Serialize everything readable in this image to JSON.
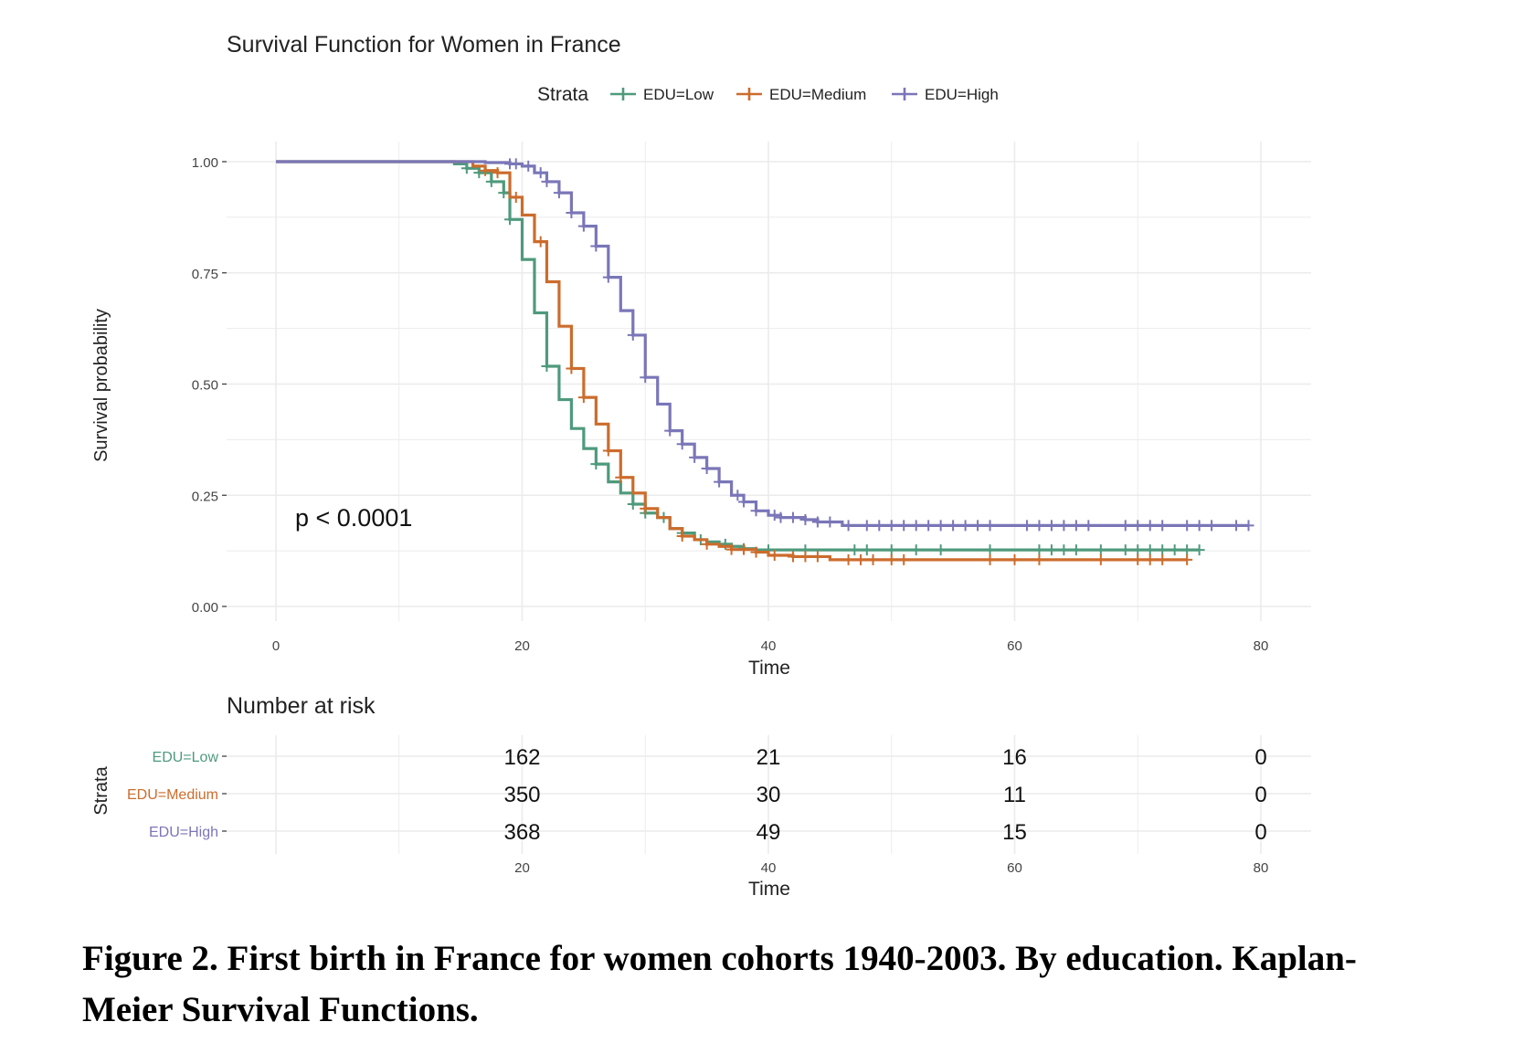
{
  "chart_data": {
    "type": "line",
    "title": "Survival Function for Women in France",
    "xlabel": "Time",
    "ylabel": "Survival probability",
    "xlim": [
      0,
      84
    ],
    "ylim": [
      0,
      1
    ],
    "x_ticks": [
      "0",
      "20",
      "40",
      "60",
      "80"
    ],
    "y_ticks": [
      "0.00",
      "0.25",
      "0.50",
      "0.75",
      "1.00"
    ],
    "grid": true,
    "legend": {
      "title": "Strata",
      "position": "top"
    },
    "annotation": "p < 0.0001",
    "series": [
      {
        "name": "EDU=Low",
        "color": "#4e9a7c",
        "steps": [
          [
            0,
            1.0
          ],
          [
            14.5,
            0.995
          ],
          [
            15.5,
            0.985
          ],
          [
            16.5,
            0.975
          ],
          [
            17.5,
            0.955
          ],
          [
            18.5,
            0.93
          ],
          [
            19,
            0.87
          ],
          [
            20,
            0.78
          ],
          [
            21,
            0.66
          ],
          [
            22,
            0.54
          ],
          [
            23,
            0.465
          ],
          [
            24,
            0.4
          ],
          [
            25,
            0.355
          ],
          [
            26,
            0.32
          ],
          [
            27,
            0.28
          ],
          [
            28,
            0.255
          ],
          [
            29,
            0.23
          ],
          [
            30,
            0.21
          ],
          [
            31,
            0.2
          ],
          [
            32,
            0.175
          ],
          [
            33,
            0.165
          ],
          [
            34,
            0.15
          ],
          [
            35,
            0.145
          ],
          [
            36,
            0.14
          ],
          [
            37,
            0.135
          ],
          [
            38,
            0.13
          ],
          [
            39,
            0.127
          ],
          [
            75,
            0.127
          ]
        ],
        "censored": [
          15.5,
          16.5,
          17.5,
          18.5,
          19,
          22,
          26,
          29,
          30,
          31.5,
          33,
          34.5,
          36.5,
          38,
          40,
          43,
          47,
          48,
          50,
          52,
          54,
          58,
          62,
          63,
          64,
          65,
          67,
          69,
          70,
          71,
          72,
          73,
          74,
          75
        ]
      },
      {
        "name": "EDU=Medium",
        "color": "#cc6c2c",
        "steps": [
          [
            0,
            1.0
          ],
          [
            16,
            0.99
          ],
          [
            17,
            0.98
          ],
          [
            18,
            0.975
          ],
          [
            19,
            0.92
          ],
          [
            20,
            0.88
          ],
          [
            21,
            0.82
          ],
          [
            22,
            0.73
          ],
          [
            23,
            0.63
          ],
          [
            24,
            0.535
          ],
          [
            25,
            0.47
          ],
          [
            26,
            0.41
          ],
          [
            27,
            0.35
          ],
          [
            28,
            0.29
          ],
          [
            29,
            0.255
          ],
          [
            30,
            0.22
          ],
          [
            31,
            0.2
          ],
          [
            32,
            0.175
          ],
          [
            33,
            0.158
          ],
          [
            34,
            0.15
          ],
          [
            35,
            0.14
          ],
          [
            36,
            0.135
          ],
          [
            37,
            0.128
          ],
          [
            39,
            0.122
          ],
          [
            40,
            0.115
          ],
          [
            42,
            0.112
          ],
          [
            45,
            0.105
          ],
          [
            74,
            0.105
          ]
        ],
        "censored": [
          17,
          18,
          19.5,
          21.5,
          24,
          25,
          27,
          28,
          30,
          33,
          35,
          37,
          38,
          39,
          40.5,
          42,
          43,
          44,
          46.5,
          47.5,
          48.5,
          50,
          51,
          58,
          60,
          62,
          67,
          70,
          71,
          72,
          74
        ]
      },
      {
        "name": "EDU=High",
        "color": "#7a76b8",
        "steps": [
          [
            0,
            1.0
          ],
          [
            17,
            0.998
          ],
          [
            19,
            0.995
          ],
          [
            20,
            0.99
          ],
          [
            21,
            0.975
          ],
          [
            22,
            0.955
          ],
          [
            23,
            0.93
          ],
          [
            24,
            0.885
          ],
          [
            25,
            0.855
          ],
          [
            26,
            0.81
          ],
          [
            27,
            0.74
          ],
          [
            28,
            0.665
          ],
          [
            29,
            0.61
          ],
          [
            30,
            0.515
          ],
          [
            31,
            0.455
          ],
          [
            32,
            0.395
          ],
          [
            33,
            0.365
          ],
          [
            34,
            0.335
          ],
          [
            35,
            0.31
          ],
          [
            36,
            0.28
          ],
          [
            37,
            0.25
          ],
          [
            38,
            0.235
          ],
          [
            39,
            0.215
          ],
          [
            40,
            0.205
          ],
          [
            41,
            0.2
          ],
          [
            43,
            0.195
          ],
          [
            44,
            0.19
          ],
          [
            46,
            0.182
          ],
          [
            79,
            0.182
          ]
        ],
        "censored": [
          19,
          19.5,
          20.5,
          21.5,
          22,
          23,
          24,
          25,
          26,
          27,
          29,
          30,
          32,
          33,
          34,
          35,
          36,
          37.5,
          38,
          39,
          40.5,
          41,
          42,
          43,
          44,
          45,
          46.5,
          48,
          49,
          50,
          51,
          52,
          53,
          54,
          55,
          56,
          57,
          58,
          61,
          62,
          63,
          64,
          65,
          66,
          69,
          70,
          71,
          72,
          74,
          75,
          76,
          78,
          79
        ]
      }
    ]
  },
  "risk_table": {
    "title": "Number at risk",
    "ylabel": "Strata",
    "xlabel": "Time",
    "x_ticks": [
      "20",
      "40",
      "60",
      "80"
    ],
    "times": [
      20,
      40,
      60,
      80
    ],
    "rows": [
      {
        "name": "EDU=Low",
        "color": "#4e9a7c",
        "values": [
          "162",
          "21",
          "16",
          "0"
        ]
      },
      {
        "name": "EDU=Medium",
        "color": "#cc6c2c",
        "values": [
          "350",
          "30",
          "11",
          "0"
        ]
      },
      {
        "name": "EDU=High",
        "color": "#7a76b8",
        "values": [
          "368",
          "49",
          "15",
          "0"
        ]
      }
    ]
  },
  "caption": "Figure 2. First birth in France for women cohorts 1940-2003. By education. Kaplan-Meier Survival Functions."
}
